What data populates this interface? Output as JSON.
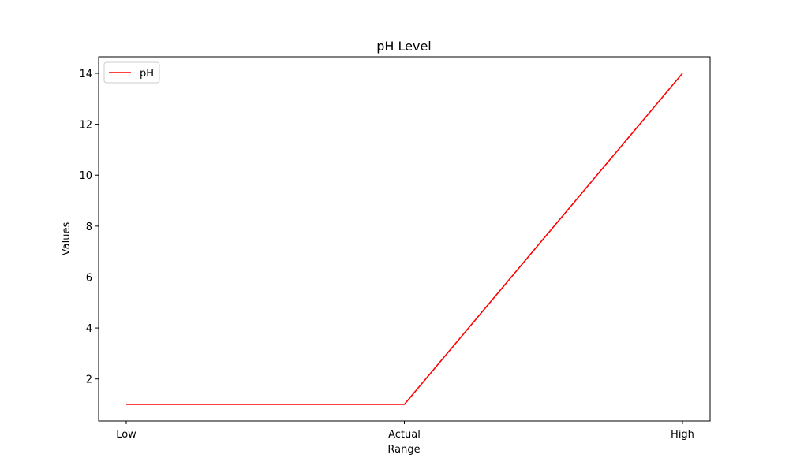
{
  "chart_data": {
    "type": "line",
    "title": "pH Level",
    "xlabel": "Range",
    "ylabel": "Values",
    "categories": [
      "Low",
      "Actual",
      "High"
    ],
    "series": [
      {
        "name": "pH",
        "values": [
          1,
          1,
          14
        ],
        "color": "#ff0000"
      }
    ],
    "ylim": [
      0.35,
      14.65
    ],
    "yticks": [
      2,
      4,
      6,
      8,
      10,
      12,
      14
    ],
    "grid": false,
    "legend": "top-left"
  }
}
